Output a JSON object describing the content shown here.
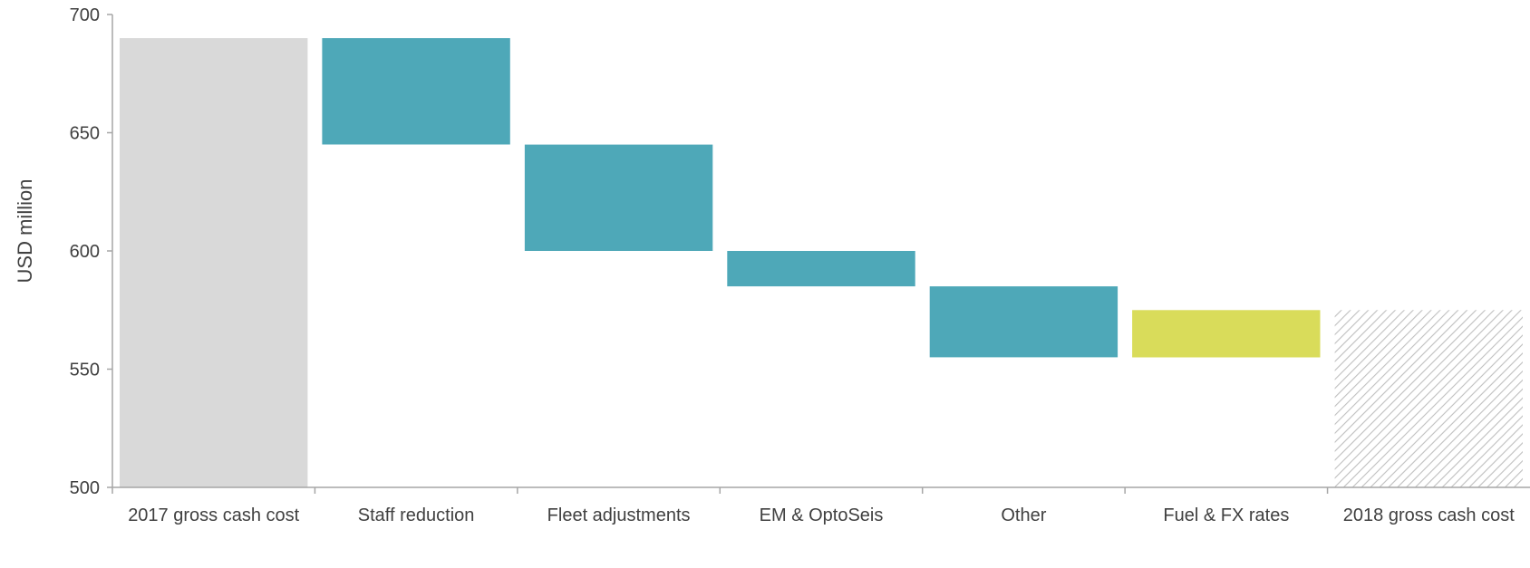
{
  "chart_data": {
    "type": "bar",
    "subtype": "waterfall",
    "title": "",
    "xlabel": "",
    "ylabel": "USD million",
    "ylim": [
      500,
      700
    ],
    "yticks": [
      500,
      550,
      600,
      650,
      700
    ],
    "grid": false,
    "legend": "none",
    "categories": [
      "2017 gross cash cost",
      "Staff reduction",
      "Fleet adjustments",
      "EM & OptoSeis",
      "Other",
      "Fuel & FX rates",
      "2018 gross cash cost"
    ],
    "bars": [
      {
        "kind": "total",
        "start": 500,
        "end": 690,
        "color": "#d9d9d9"
      },
      {
        "kind": "decrease",
        "start": 690,
        "end": 645,
        "color": "#4ea8b8"
      },
      {
        "kind": "decrease",
        "start": 645,
        "end": 600,
        "color": "#4ea8b8"
      },
      {
        "kind": "decrease",
        "start": 600,
        "end": 585,
        "color": "#4ea8b8"
      },
      {
        "kind": "decrease",
        "start": 585,
        "end": 555,
        "color": "#4ea8b8"
      },
      {
        "kind": "increase",
        "start": 555,
        "end": 575,
        "color": "#d9dc5a"
      },
      {
        "kind": "total",
        "start": 500,
        "end": 575,
        "color": "#d9d9d9",
        "pattern": "hatched"
      }
    ],
    "axis_color": "#a6a6a6"
  }
}
